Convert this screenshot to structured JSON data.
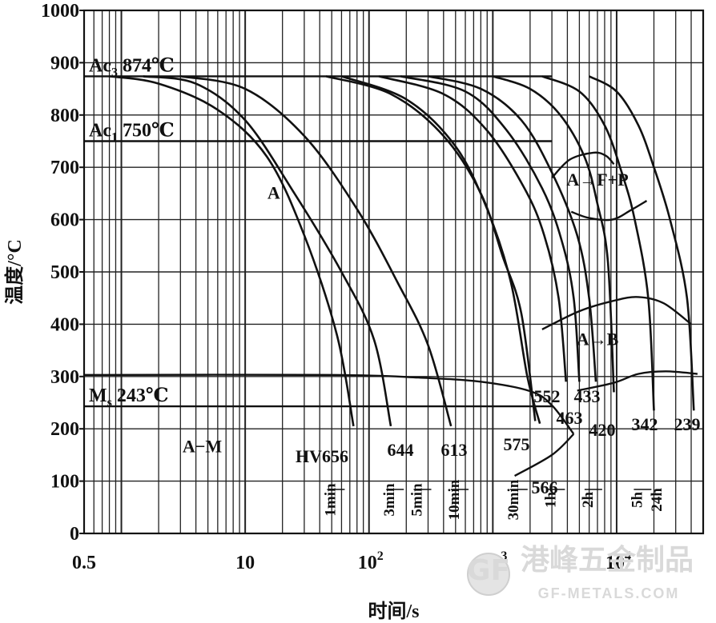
{
  "chart_data": {
    "type": "line",
    "xlabel": "时间/s",
    "ylabel": "温度/°C",
    "xscale": "log",
    "xlim": [
      0.5,
      50000
    ],
    "ylim": [
      0,
      1000
    ],
    "grid": true,
    "y_ticks": [
      "0",
      "100",
      "200",
      "300",
      "400",
      "500",
      "600",
      "700",
      "800",
      "900",
      "1000"
    ],
    "x_ticks": [
      {
        "value": 0.5,
        "label": "0.5"
      },
      {
        "value": 10,
        "label": "10"
      },
      {
        "value": 100,
        "label": "10",
        "exp": "2"
      },
      {
        "value": 1000,
        "label": "10",
        "exp": "3"
      },
      {
        "value": 10000,
        "label": "10",
        "exp": "4"
      }
    ],
    "critical_lines": [
      {
        "name": "Ac3",
        "value": 874,
        "sub": "3",
        "label_main": "Ac",
        "label_rest": " 874℃"
      },
      {
        "name": "Ac1",
        "value": 750,
        "sub": "1",
        "label_main": "Ac",
        "label_rest": " 750℃"
      },
      {
        "name": "Ms",
        "value": 243,
        "sub": "s",
        "label_main": "M",
        "label_rest": " 243℃"
      }
    ],
    "time_markers": [
      {
        "label": "1min",
        "x": 60
      },
      {
        "label": "3min",
        "x": 180
      },
      {
        "label": "5min",
        "x": 300
      },
      {
        "label": "10min",
        "x": 600
      },
      {
        "label": "30min",
        "x": 1800
      },
      {
        "label": "1h",
        "x": 3600
      },
      {
        "label": "2h",
        "x": 7200
      },
      {
        "label": "5h",
        "x": 18000
      },
      {
        "label": "24h",
        "x": 86400
      }
    ],
    "phase_regions": [
      {
        "label": "A",
        "x": 17,
        "y": 640
      },
      {
        "label": "A→F+P",
        "x": 7000,
        "y": 665
      },
      {
        "label": "A→B",
        "x": 7000,
        "y": 360
      },
      {
        "label": "A−M",
        "x": 4.5,
        "y": 155
      }
    ],
    "phase_boundaries": [
      {
        "name": "ferrite-pearlite start",
        "points": [
          [
            3000,
            680
          ],
          [
            4200,
            715
          ],
          [
            6500,
            728
          ],
          [
            8200,
            722
          ],
          [
            9500,
            706
          ]
        ]
      },
      {
        "name": "ferrite-pearlite end",
        "points": [
          [
            4300,
            615
          ],
          [
            6000,
            603
          ],
          [
            9200,
            600
          ],
          [
            13000,
            618
          ],
          [
            17500,
            636
          ]
        ]
      },
      {
        "name": "bainite start",
        "points": [
          [
            2500,
            390
          ],
          [
            5000,
            425
          ],
          [
            9500,
            445
          ],
          [
            15000,
            452
          ],
          [
            24000,
            440
          ],
          [
            40000,
            400
          ]
        ]
      },
      {
        "name": "bainite end",
        "points": [
          [
            4800,
            273
          ],
          [
            9500,
            288
          ],
          [
            15000,
            305
          ],
          [
            25000,
            310
          ],
          [
            45000,
            305
          ]
        ]
      },
      {
        "name": "martensite start",
        "points": [
          [
            0.5,
            303
          ],
          [
            50,
            303
          ],
          [
            250,
            298
          ],
          [
            800,
            290
          ],
          [
            2000,
            272
          ],
          [
            3000,
            245
          ],
          [
            4500,
            190
          ]
        ]
      },
      {
        "name": "martensite finish",
        "points": [
          [
            1500,
            110
          ],
          [
            3000,
            150
          ],
          [
            4500,
            190
          ]
        ]
      }
    ],
    "series": [
      {
        "hv": "656",
        "label": "HV656",
        "points": [
          [
            0.8,
            874
          ],
          [
            2,
            860
          ],
          [
            6,
            810
          ],
          [
            15,
            720
          ],
          [
            30,
            570
          ],
          [
            55,
            380
          ],
          [
            75,
            205
          ]
        ]
      },
      {
        "hv": "644",
        "label": "644",
        "points": [
          [
            1.5,
            874
          ],
          [
            4,
            860
          ],
          [
            10,
            790
          ],
          [
            25,
            650
          ],
          [
            60,
            500
          ],
          [
            110,
            370
          ],
          [
            150,
            205
          ]
        ]
      },
      {
        "hv": "613",
        "label": "613",
        "points": [
          [
            3,
            874
          ],
          [
            10,
            850
          ],
          [
            30,
            760
          ],
          [
            80,
            620
          ],
          [
            170,
            480
          ],
          [
            300,
            360
          ],
          [
            460,
            205
          ]
        ]
      },
      {
        "hv": "575",
        "label": "575",
        "points": [
          [
            45,
            874
          ],
          [
            150,
            840
          ],
          [
            400,
            760
          ],
          [
            800,
            650
          ],
          [
            1200,
            530
          ],
          [
            1700,
            420
          ],
          [
            2200,
            215
          ]
        ]
      },
      {
        "hv": "566",
        "label": "566",
        "points": [
          [
            60,
            874
          ],
          [
            200,
            830
          ],
          [
            500,
            740
          ],
          [
            900,
            620
          ],
          [
            1400,
            480
          ],
          [
            1900,
            300
          ],
          [
            2400,
            210
          ]
        ]
      },
      {
        "hv": "552",
        "label": "552",
        "points": [
          [
            120,
            874
          ],
          [
            400,
            840
          ],
          [
            900,
            770
          ],
          [
            1800,
            660
          ],
          [
            2600,
            570
          ],
          [
            3400,
            450
          ],
          [
            3900,
            290
          ]
        ]
      },
      {
        "hv": "463",
        "label": "463",
        "points": [
          [
            180,
            874
          ],
          [
            600,
            845
          ],
          [
            1300,
            770
          ],
          [
            2500,
            660
          ],
          [
            3600,
            560
          ],
          [
            4500,
            450
          ],
          [
            5000,
            290
          ]
        ]
      },
      {
        "hv": "433",
        "label": "433",
        "points": [
          [
            300,
            874
          ],
          [
            800,
            850
          ],
          [
            1700,
            790
          ],
          [
            3000,
            690
          ],
          [
            4800,
            570
          ],
          [
            6000,
            450
          ],
          [
            6800,
            290
          ]
        ]
      },
      {
        "hv": "420",
        "label": "420",
        "points": [
          [
            1000,
            874
          ],
          [
            2000,
            850
          ],
          [
            3500,
            800
          ],
          [
            5500,
            720
          ],
          [
            7000,
            630
          ],
          [
            8500,
            520
          ],
          [
            9500,
            270
          ]
        ]
      },
      {
        "hv": "342",
        "label": "342",
        "points": [
          [
            2500,
            874
          ],
          [
            5000,
            845
          ],
          [
            8000,
            780
          ],
          [
            11000,
            690
          ],
          [
            14000,
            600
          ],
          [
            18000,
            450
          ],
          [
            20000,
            235
          ]
        ]
      },
      {
        "hv": "239",
        "label": "239",
        "points": [
          [
            6000,
            874
          ],
          [
            10000,
            845
          ],
          [
            15000,
            780
          ],
          [
            20000,
            700
          ],
          [
            27000,
            600
          ],
          [
            37000,
            450
          ],
          [
            42000,
            235
          ]
        ]
      }
    ]
  },
  "watermark": {
    "cn": "港峰五金制品",
    "en": "GF-METALS.COM",
    "logo": "GF"
  }
}
